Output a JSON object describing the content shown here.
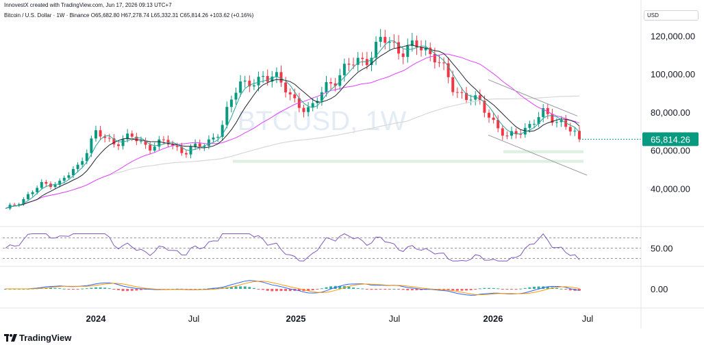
{
  "header": {
    "attribution": "InnovestX created with TradingView.com, Jun 17, 2026 09:13 UTC+7",
    "symbol_line": "Bitcoin / U.S. Dollar · 1W · Binance",
    "ohlc": "O65,682.80 H67,278.74 L65,332.31 C65,814.26 +103.62 (+0.16%)"
  },
  "currency": "USD",
  "watermark": "BTCUSD, 1W",
  "brand": "TradingView",
  "colors": {
    "up": "#089981",
    "down": "#f23645",
    "ma_fast": "#26a69a",
    "ma_mid": "#1e222d",
    "ma_pink": "#e040fb",
    "ma_long": "#d7d7d7",
    "support": "#c8e6c9",
    "rsi": "#7e57c2",
    "macd_signal": "#ff9800"
  },
  "chart_data": {
    "type": "line",
    "title": "BTCUSD, 1W",
    "price_axis": {
      "ticks": [
        120000,
        100000,
        80000,
        60000,
        40000
      ],
      "ylim": [
        24000,
        128000
      ]
    },
    "time_axis": {
      "labels": [
        "2024",
        "Jul",
        "2025",
        "Jul",
        "2026",
        "Jul"
      ]
    },
    "last_price": 65814.26,
    "last_price_label": "65,814.26",
    "weekly_close": [
      {
        "t": "2023-10",
        "c": 29000
      },
      {
        "t": "2023-11",
        "c": 34500
      },
      {
        "t": "2023-12",
        "c": 42000
      },
      {
        "t": "2024-01",
        "c": 43000
      },
      {
        "t": "2024-02",
        "c": 51000
      },
      {
        "t": "2024-03",
        "c": 69000
      },
      {
        "t": "2024-04",
        "c": 64000
      },
      {
        "t": "2024-05",
        "c": 67000
      },
      {
        "t": "2024-06",
        "c": 62000
      },
      {
        "t": "2024-07",
        "c": 64500
      },
      {
        "t": "2024-08",
        "c": 59000
      },
      {
        "t": "2024-09",
        "c": 63000
      },
      {
        "t": "2024-10",
        "c": 70000
      },
      {
        "t": "2024-11",
        "c": 97000
      },
      {
        "t": "2024-12",
        "c": 94000
      },
      {
        "t": "2025-01",
        "c": 102000
      },
      {
        "t": "2025-02",
        "c": 85000
      },
      {
        "t": "2025-03",
        "c": 82000
      },
      {
        "t": "2025-04",
        "c": 94000
      },
      {
        "t": "2025-05",
        "c": 104000
      },
      {
        "t": "2025-06",
        "c": 107000
      },
      {
        "t": "2025-07",
        "c": 118000
      },
      {
        "t": "2025-08",
        "c": 113000
      },
      {
        "t": "2025-09",
        "c": 114000
      },
      {
        "t": "2025-10",
        "c": 110000
      },
      {
        "t": "2025-11",
        "c": 91000
      },
      {
        "t": "2025-12",
        "c": 88000
      },
      {
        "t": "2026-01",
        "c": 78000
      },
      {
        "t": "2026-02",
        "c": 66000
      },
      {
        "t": "2026-03",
        "c": 72000
      },
      {
        "t": "2026-04",
        "c": 79000
      },
      {
        "t": "2026-05",
        "c": 75000
      },
      {
        "t": "2026-06",
        "c": 65814
      }
    ],
    "rsi": {
      "level_label": "50.00",
      "level": 50
    },
    "macd": {
      "level_label": "0.00",
      "level": 0
    }
  }
}
